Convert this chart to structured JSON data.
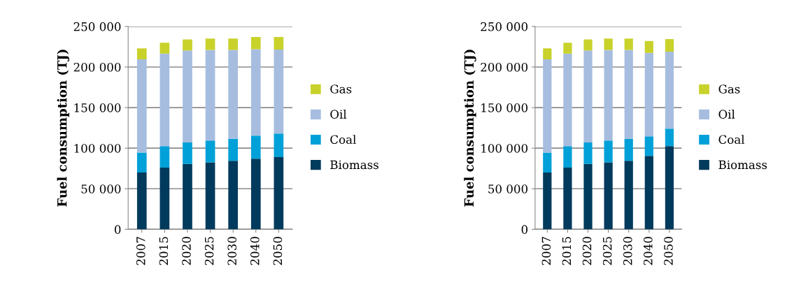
{
  "chart_data": [
    {
      "type": "bar",
      "stacked": true,
      "ylabel": "Fuel consumption (TJ)",
      "categories": [
        "2007",
        "2015",
        "2020",
        "2025",
        "2030",
        "2040",
        "2050"
      ],
      "series": [
        {
          "name": "Biomass",
          "color": "#003a5c",
          "values": [
            70000,
            76000,
            80500,
            82500,
            84500,
            87000,
            89000
          ]
        },
        {
          "name": "Coal",
          "color": "#00a0d8",
          "values": [
            24500,
            26500,
            26500,
            27000,
            27000,
            28500,
            29000
          ]
        },
        {
          "name": "Oil",
          "color": "#a6bddf",
          "values": [
            115000,
            114000,
            113500,
            111500,
            109500,
            106500,
            103500
          ]
        },
        {
          "name": "Gas",
          "color": "#c8d22a",
          "values": [
            13500,
            13500,
            13500,
            14000,
            14000,
            15000,
            15500
          ]
        }
      ],
      "ylim": [
        0,
        250000
      ],
      "yticks": [
        0,
        {
          "value": 50000,
          "label": "50 000"
        },
        {
          "value": 100000,
          "label": "100 000"
        },
        {
          "value": 150000,
          "label": "150 000"
        },
        {
          "value": 200000,
          "label": "200 000"
        },
        {
          "value": 250000,
          "label": "250 000"
        }
      ],
      "grid": "y",
      "legend": "right"
    },
    {
      "type": "bar",
      "stacked": true,
      "ylabel": "Fuel consumption (TJ)",
      "categories": [
        "2007",
        "2015",
        "2020",
        "2025",
        "2030",
        "2040",
        "2050"
      ],
      "series": [
        {
          "name": "Biomass",
          "color": "#003a5c",
          "values": [
            70000,
            76000,
            80500,
            82500,
            84500,
            90500,
            102500
          ]
        },
        {
          "name": "Coal",
          "color": "#00a0d8",
          "values": [
            24500,
            26500,
            26500,
            27000,
            27000,
            24000,
            21500
          ]
        },
        {
          "name": "Oil",
          "color": "#a6bddf",
          "values": [
            115000,
            114000,
            113500,
            111500,
            109500,
            103000,
            95000
          ]
        },
        {
          "name": "Gas",
          "color": "#c8d22a",
          "values": [
            13500,
            13500,
            13500,
            14000,
            14000,
            14500,
            15500
          ]
        }
      ],
      "ylim": [
        0,
        250000
      ],
      "yticks": [
        0,
        {
          "value": 50000,
          "label": "50 000"
        },
        {
          "value": 100000,
          "label": "100 000"
        },
        {
          "value": 150000,
          "label": "150 000"
        },
        {
          "value": 200000,
          "label": "200 000"
        },
        {
          "value": 250000,
          "label": "250 000"
        }
      ],
      "grid": "y",
      "legend": "right"
    }
  ]
}
